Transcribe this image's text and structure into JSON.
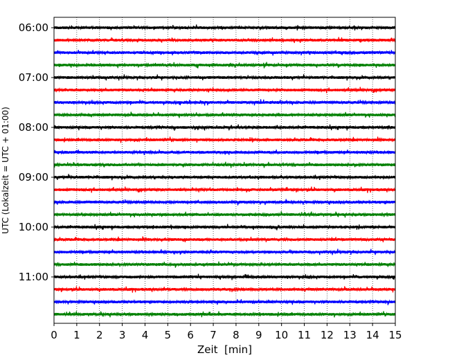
{
  "chart_data": {
    "type": "line",
    "title": "",
    "xlabel": "Zeit  [min]",
    "ylabel": "UTC (Lokalzeit = UTC + 01:00)",
    "xlim": [
      0,
      15
    ],
    "x_ticks": [
      "0",
      "1",
      "2",
      "3",
      "4",
      "5",
      "6",
      "7",
      "8",
      "9",
      "10",
      "11",
      "12",
      "13",
      "14",
      "15"
    ],
    "y_tick_labels": [
      "06:00",
      "07:00",
      "08:00",
      "09:00",
      "10:00",
      "11:00"
    ],
    "grid": "vertical dotted at each minute",
    "row_interval_min": 15,
    "traces": [
      {
        "start": "06:00",
        "color": "#000000"
      },
      {
        "start": "06:15",
        "color": "#ff0000"
      },
      {
        "start": "06:30",
        "color": "#0000ff"
      },
      {
        "start": "06:45",
        "color": "#008000"
      },
      {
        "start": "07:00",
        "color": "#000000"
      },
      {
        "start": "07:15",
        "color": "#ff0000"
      },
      {
        "start": "07:30",
        "color": "#0000ff"
      },
      {
        "start": "07:45",
        "color": "#008000"
      },
      {
        "start": "08:00",
        "color": "#000000"
      },
      {
        "start": "08:15",
        "color": "#ff0000"
      },
      {
        "start": "08:30",
        "color": "#0000ff"
      },
      {
        "start": "08:45",
        "color": "#008000"
      },
      {
        "start": "09:00",
        "color": "#000000"
      },
      {
        "start": "09:15",
        "color": "#ff0000"
      },
      {
        "start": "09:30",
        "color": "#0000ff"
      },
      {
        "start": "09:45",
        "color": "#008000"
      },
      {
        "start": "10:00",
        "color": "#000000"
      },
      {
        "start": "10:15",
        "color": "#ff0000"
      },
      {
        "start": "10:30",
        "color": "#0000ff"
      },
      {
        "start": "10:45",
        "color": "#008000"
      },
      {
        "start": "11:00",
        "color": "#000000"
      },
      {
        "start": "11:15",
        "color": "#ff0000"
      },
      {
        "start": "11:30",
        "color": "#0000ff"
      },
      {
        "start": "11:45",
        "color": "#008000"
      }
    ]
  }
}
